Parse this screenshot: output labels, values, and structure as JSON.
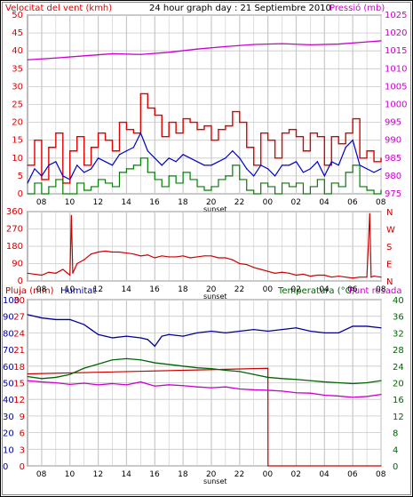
{
  "title": "24 hour graph day : 21 Septiembre 2010",
  "colors": {
    "wind": "#e00000",
    "wind_avg": "#0000cc",
    "wind_min": "#008000",
    "pressure": "#cc00cc",
    "direction": "#cc0000",
    "rain": "#cc0000",
    "humidity": "#000099",
    "temperature": "#006600",
    "dewpoint": "#cc00cc",
    "grid": "#c8c8c8",
    "frame": "#000000"
  },
  "x_ticks": [
    "08",
    "10",
    "12",
    "14",
    "16",
    "18",
    "20",
    "22",
    "00",
    "02",
    "04",
    "06",
    "08"
  ],
  "sunset_label": "sunset",
  "chart_data": [
    {
      "type": "line",
      "title": "24 hour graph day : 21 Septiembre 2010",
      "ylabel": "Velocitat del vent (kmh)",
      "ylabel_right": "Pressió (mb)",
      "ylim": [
        0,
        50
      ],
      "ylim_right": [
        975,
        1025
      ],
      "y_ticks": [
        0,
        5,
        10,
        15,
        20,
        25,
        30,
        35,
        40,
        45,
        50
      ],
      "y_ticks_right": [
        975,
        980,
        985,
        990,
        995,
        1000,
        1005,
        1010,
        1015,
        1020,
        1025
      ],
      "x_range": [
        7,
        32
      ],
      "grid": true,
      "series": [
        {
          "key": "gust",
          "axis": "left",
          "x": [
            7,
            7.5,
            8,
            8.5,
            9,
            9.5,
            10,
            10.5,
            11,
            11.5,
            12,
            12.5,
            13,
            13.5,
            14,
            14.5,
            15,
            15.5,
            16,
            16.5,
            17,
            17.5,
            18,
            18.5,
            19,
            19.5,
            20,
            20.5,
            21,
            21.5,
            22,
            22.5,
            23,
            23.5,
            24,
            24.5,
            25,
            25.5,
            26,
            26.5,
            27,
            27.5,
            28,
            28.5,
            29,
            29.5,
            30,
            30.5,
            31,
            31.5,
            32
          ],
          "values": [
            8,
            15,
            4,
            13,
            17,
            3,
            12,
            16,
            8,
            13,
            17,
            15,
            12,
            20,
            18,
            17,
            28,
            24,
            22,
            16,
            20,
            17,
            21,
            20,
            18,
            19,
            15,
            18,
            19,
            23,
            20,
            13,
            8,
            17,
            15,
            10,
            17,
            18,
            16,
            12,
            17,
            16,
            8,
            16,
            14,
            17,
            21,
            10,
            12,
            9,
            10
          ]
        },
        {
          "key": "average",
          "axis": "left",
          "x": [
            7,
            7.5,
            8,
            8.5,
            9,
            9.5,
            10,
            10.5,
            11,
            11.5,
            12,
            12.5,
            13,
            13.5,
            14,
            14.5,
            15,
            15.5,
            16,
            16.5,
            17,
            17.5,
            18,
            18.5,
            19,
            19.5,
            20,
            20.5,
            21,
            21.5,
            22,
            22.5,
            23,
            23.5,
            24,
            24.5,
            25,
            25.5,
            26,
            26.5,
            27,
            27.5,
            28,
            28.5,
            29,
            29.5,
            30,
            30.5,
            31,
            31.5,
            32
          ],
          "values": [
            3,
            7,
            5,
            8,
            9,
            5,
            4,
            8,
            6,
            7,
            10,
            9,
            8,
            11,
            12,
            13,
            17,
            12,
            10,
            8,
            10,
            9,
            11,
            10,
            9,
            8,
            8,
            9,
            10,
            12,
            10,
            7,
            5,
            8,
            7,
            5,
            8,
            8,
            9,
            6,
            7,
            9,
            5,
            9,
            8,
            13,
            15,
            8,
            7,
            6,
            7
          ]
        },
        {
          "key": "minimum",
          "axis": "left",
          "x": [
            7,
            7.5,
            8,
            8.5,
            9,
            9.5,
            10,
            10.5,
            11,
            11.5,
            12,
            12.5,
            13,
            13.5,
            14,
            14.5,
            15,
            15.5,
            16,
            16.5,
            17,
            17.5,
            18,
            18.5,
            19,
            19.5,
            20,
            20.5,
            21,
            21.5,
            22,
            22.5,
            23,
            23.5,
            24,
            24.5,
            25,
            25.5,
            26,
            26.5,
            27,
            27.5,
            28,
            28.5,
            29,
            29.5,
            30,
            30.5,
            31,
            31.5,
            32
          ],
          "values": [
            0,
            3,
            0,
            2,
            4,
            0,
            0,
            3,
            1,
            2,
            4,
            3,
            2,
            6,
            7,
            8,
            10,
            6,
            4,
            2,
            5,
            3,
            6,
            4,
            2,
            1,
            2,
            4,
            5,
            8,
            4,
            1,
            0,
            3,
            2,
            0,
            3,
            2,
            3,
            0,
            2,
            4,
            0,
            3,
            2,
            6,
            8,
            2,
            1,
            0,
            1
          ]
        },
        {
          "key": "pressure",
          "axis": "right",
          "x": [
            7,
            9,
            11,
            13,
            15,
            17,
            19,
            21,
            23,
            25,
            27,
            29,
            31,
            32
          ],
          "values": [
            1012.5,
            1013,
            1013.6,
            1014.2,
            1014.0,
            1014.6,
            1015.5,
            1016.2,
            1016.8,
            1017.0,
            1016.7,
            1016.9,
            1017.5,
            1017.8
          ]
        }
      ]
    },
    {
      "type": "line",
      "ylim": [
        0,
        360
      ],
      "y_ticks": [
        0,
        90,
        180,
        270,
        360
      ],
      "y_ticks_right": [
        "N",
        "E",
        "S",
        "W",
        "N"
      ],
      "x_range": [
        7,
        32
      ],
      "grid": true,
      "series": [
        {
          "key": "direction",
          "axis": "left",
          "x": [
            7,
            7.5,
            8,
            8.5,
            9,
            9.5,
            10,
            10.1,
            10.2,
            10.5,
            11,
            11.5,
            12,
            12.5,
            13,
            13.5,
            14,
            14.5,
            15,
            15.5,
            16,
            16.5,
            17,
            17.5,
            18,
            18.5,
            19,
            19.5,
            20,
            20.5,
            21,
            21.5,
            22,
            22.5,
            23,
            23.5,
            24,
            24.5,
            25,
            25.5,
            26,
            26.5,
            27,
            27.5,
            28,
            28.5,
            29,
            29.5,
            30,
            30.5,
            31,
            31.2,
            31.3,
            31.5,
            32
          ],
          "values": [
            40,
            35,
            30,
            45,
            40,
            60,
            30,
            340,
            40,
            90,
            110,
            140,
            150,
            155,
            150,
            150,
            145,
            140,
            130,
            135,
            120,
            130,
            125,
            125,
            130,
            120,
            125,
            130,
            130,
            120,
            120,
            110,
            90,
            85,
            70,
            60,
            50,
            40,
            45,
            40,
            30,
            35,
            25,
            30,
            30,
            20,
            25,
            20,
            15,
            20,
            20,
            350,
            20,
            25,
            20
          ]
        }
      ]
    },
    {
      "type": "line",
      "ylabels": [
        "Pluja (mm)",
        "Humitat"
      ],
      "ylabel_right": [
        "Temperatura (°C)",
        "Punt rosada"
      ],
      "ylim": [
        0,
        100
      ],
      "ylim_rain": [
        0,
        30
      ],
      "ylim_right": [
        0,
        40
      ],
      "y_ticks_humidity": [
        0,
        10,
        20,
        30,
        40,
        50,
        60,
        70,
        80,
        90,
        100
      ],
      "y_ticks_rain": [
        0,
        3,
        6,
        9,
        12,
        15,
        18,
        21,
        24,
        27,
        30
      ],
      "y_ticks_right": [
        0,
        4,
        8,
        12,
        16,
        20,
        24,
        28,
        32,
        36,
        40
      ],
      "x_range": [
        7,
        32
      ],
      "grid": true,
      "series": [
        {
          "key": "humidity",
          "axis": "humidity",
          "x": [
            7,
            8,
            9,
            10,
            11,
            11.5,
            12,
            13,
            14,
            15,
            15.5,
            16,
            16.5,
            17,
            18,
            19,
            20,
            21,
            22,
            23,
            24,
            25,
            26,
            27,
            28,
            29,
            30,
            31,
            32
          ],
          "values": [
            91,
            89,
            88,
            88,
            85,
            82,
            79,
            77,
            78,
            77,
            76,
            72,
            78,
            79,
            78,
            80,
            81,
            80,
            81,
            82,
            81,
            82,
            83,
            81,
            80,
            80,
            84,
            84,
            83
          ]
        },
        {
          "key": "rain",
          "axis": "rain",
          "x": [
            7,
            24,
            24.01,
            32
          ],
          "values": [
            16.6,
            17.6,
            0,
            0
          ]
        },
        {
          "key": "temperature",
          "axis": "right",
          "x": [
            7,
            8,
            9,
            10,
            11,
            12,
            13,
            14,
            15,
            16,
            17,
            18,
            19,
            20,
            21,
            22,
            23,
            24,
            25,
            26,
            27,
            28,
            29,
            30,
            31,
            32
          ],
          "values": [
            21.5,
            21.0,
            21.3,
            22.0,
            23.5,
            24.5,
            25.5,
            25.8,
            25.5,
            24.8,
            24.4,
            24.0,
            23.6,
            23.4,
            23.0,
            22.7,
            22.0,
            21.3,
            21.0,
            20.8,
            20.5,
            20.2,
            20.0,
            19.8,
            20.0,
            20.5
          ]
        },
        {
          "key": "dewpoint",
          "axis": "right",
          "x": [
            7,
            8,
            9,
            10,
            11,
            12,
            13,
            14,
            15,
            16,
            17,
            18,
            19,
            20,
            21,
            22,
            23,
            24,
            25,
            26,
            27,
            28,
            29,
            30,
            31,
            32
          ],
          "values": [
            20.5,
            20.2,
            20.0,
            19.6,
            19.9,
            19.5,
            19.8,
            19.5,
            20.2,
            19.2,
            19.5,
            19.3,
            19.0,
            18.8,
            19.0,
            18.5,
            18.3,
            18.2,
            18.0,
            17.6,
            17.5,
            17.0,
            16.8,
            16.5,
            16.7,
            17.2
          ]
        }
      ]
    }
  ]
}
